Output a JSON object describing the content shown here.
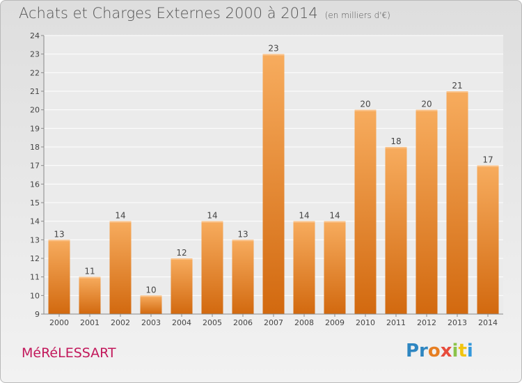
{
  "header": {
    "title": "Achats et Charges Externes 2000 à 2014",
    "subtitle": "(en milliers d'€)"
  },
  "footer": {
    "commune": "MéRéLESSART",
    "logo": [
      "Pr",
      "o",
      "x",
      "i",
      "t",
      "i"
    ]
  },
  "colors": {
    "bar": "#f0932f",
    "bar_top": "#f6a85a",
    "bar_bottom": "#d86f12",
    "title": "#545454",
    "commune": "#c2185b"
  },
  "chart_data": {
    "type": "bar",
    "categories": [
      "2000",
      "2001",
      "2002",
      "2003",
      "2004",
      "2005",
      "2006",
      "2007",
      "2008",
      "2009",
      "2010",
      "2011",
      "2012",
      "2013",
      "2014"
    ],
    "values": [
      13,
      11,
      14,
      10,
      12,
      14,
      13,
      23,
      14,
      14,
      20,
      18,
      20,
      21,
      17
    ],
    "title": "Achats et Charges Externes 2000 à 2014",
    "ylabel": "",
    "xlabel": "",
    "ylim": [
      9,
      24
    ],
    "yticks": [
      9,
      10,
      11,
      12,
      13,
      14,
      15,
      16,
      17,
      18,
      19,
      20,
      21,
      22,
      23,
      24
    ],
    "grid": true,
    "legend": "none"
  }
}
